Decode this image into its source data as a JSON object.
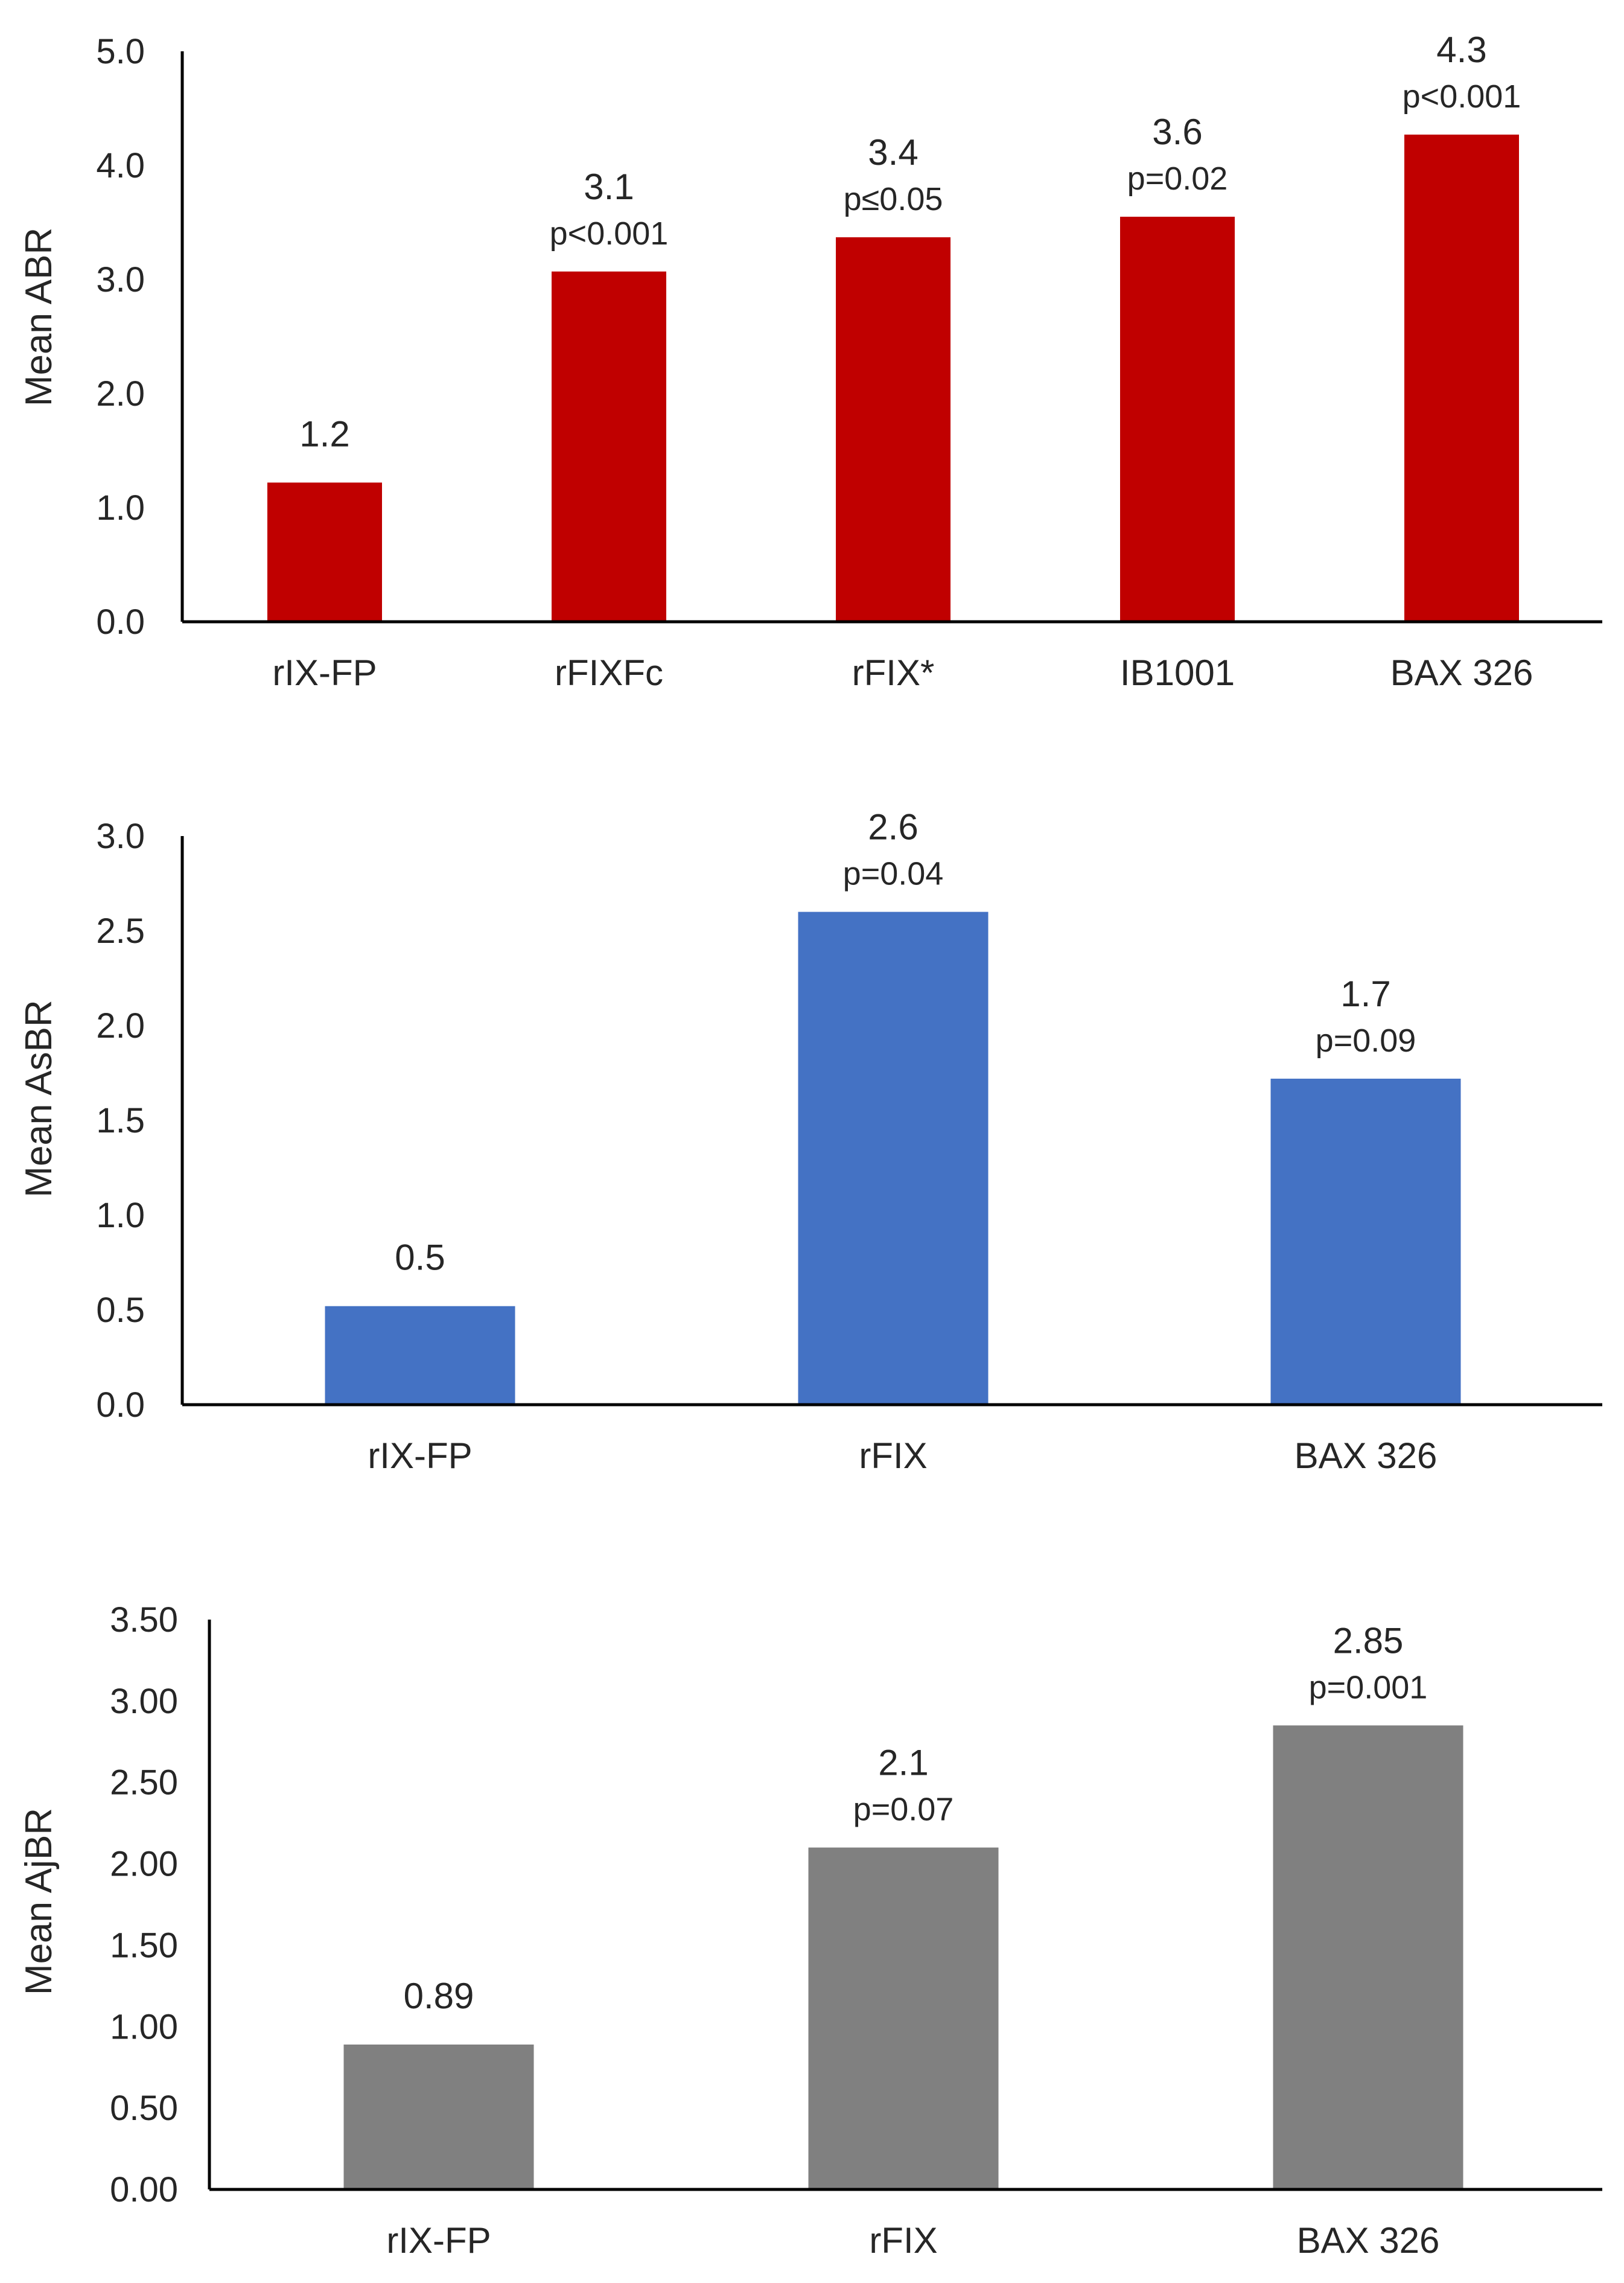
{
  "chart_data": [
    {
      "type": "bar",
      "ylabel": "Mean ABR",
      "categories": [
        "rIX-FP",
        "rFIXFc",
        "rFIX*",
        "IB1001",
        "BAX 326"
      ],
      "values": [
        1.22,
        3.07,
        3.37,
        3.55,
        4.27
      ],
      "value_labels": [
        "1.2",
        "3.1",
        "3.4",
        "3.6",
        "4.3"
      ],
      "p_labels": [
        "",
        "p<0.001",
        "p≤0.05",
        "p=0.02",
        "p<0.001"
      ],
      "ylim": [
        0,
        5
      ],
      "ticks": [
        "0.0",
        "1.0",
        "2.0",
        "3.0",
        "4.0",
        "5.0"
      ],
      "color": "#C00000"
    },
    {
      "type": "bar",
      "ylabel": "Mean AsBR",
      "categories": [
        "rIX-FP",
        "rFIX",
        "BAX 326"
      ],
      "values": [
        0.52,
        2.6,
        1.72
      ],
      "value_labels": [
        "0.5",
        "2.6",
        "1.7"
      ],
      "p_labels": [
        "",
        "p=0.04",
        "p=0.09"
      ],
      "ylim": [
        0,
        3
      ],
      "ticks": [
        "0.0",
        "0.5",
        "1.0",
        "1.5",
        "2.0",
        "2.5",
        "3.0"
      ],
      "color": "#4472C4"
    },
    {
      "type": "bar",
      "ylabel": "Mean AjBR",
      "categories": [
        "rIX-FP",
        "rFIX",
        "BAX 326"
      ],
      "values": [
        0.89,
        2.1,
        2.85
      ],
      "value_labels": [
        "0.89",
        "2.1",
        "2.85"
      ],
      "p_labels": [
        "",
        "p=0.07",
        "p=0.001"
      ],
      "ylim": [
        0,
        3.5
      ],
      "ticks": [
        "0.00",
        "0.50",
        "1.00",
        "1.50",
        "2.00",
        "2.50",
        "3.00",
        "3.50"
      ],
      "color": "#808080"
    }
  ]
}
